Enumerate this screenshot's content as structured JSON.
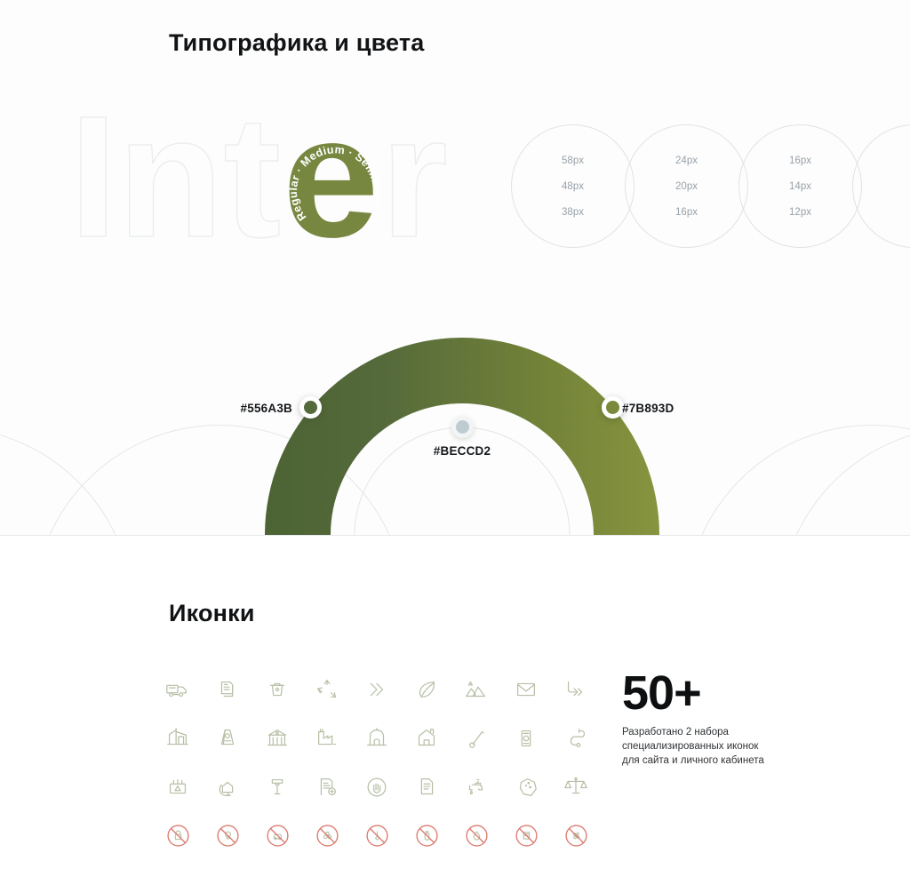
{
  "typography_section": {
    "title": "Типографика и цвета",
    "wordmark": {
      "outline_prefix": "Int",
      "accent_letter": "e",
      "outline_suffix": "r",
      "curved_text": "Regular · Medium · SemiBold"
    },
    "font_sizes": [
      [
        "58px",
        "48px",
        "38px"
      ],
      [
        "24px",
        "20px",
        "16px"
      ],
      [
        "16px",
        "14px",
        "12px"
      ]
    ],
    "colors": {
      "left": "#556A3B",
      "center": "#BECCD2",
      "right": "#7B893D"
    }
  },
  "icons_section": {
    "title": "Иконки",
    "stat_value": "50+",
    "stat_description": "Разработано 2 набора\nспециализированных иконок\nдля сайта и личного кабинета",
    "grid": [
      [
        "garbage-truck",
        "documents",
        "recycle-bin",
        "recycling",
        "double-chevron",
        "leaf",
        "mountains",
        "envelope",
        "branch-arrow"
      ],
      [
        "warehouse",
        "a-frame-sign",
        "bank-building",
        "factory",
        "dome-building",
        "house",
        "thermometer",
        "banknote",
        "hose"
      ],
      [
        "power-box",
        "eco-house",
        "gavel",
        "document-plus",
        "hand-circle",
        "document",
        "faucet",
        "stone",
        "scales"
      ],
      [
        "no-lock",
        "no-bulb",
        "no-car",
        "no-biohazard",
        "no-thermometer",
        "no-extinguisher",
        "no-flame",
        "no-box",
        "no-fan"
      ]
    ]
  },
  "palette": {
    "dark_green": "#556A3B",
    "olive_green": "#7B893D",
    "gray_blue": "#BECCD2",
    "icon_sage": "#B6BFA5",
    "prohibit_red": "#DC7B70",
    "outline_gray": "#ECEEEE"
  }
}
